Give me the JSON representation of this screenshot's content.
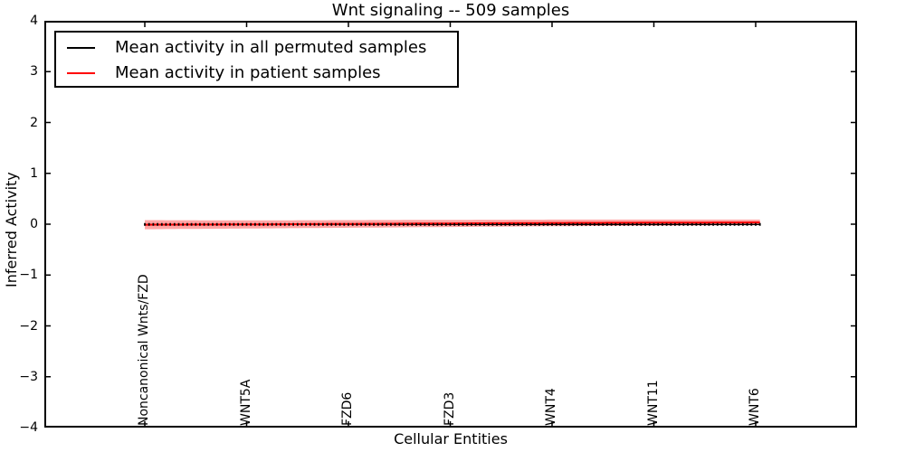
{
  "figure": {
    "title": "Wnt signaling -- 509 samples",
    "xlabel": "Cellular Entities",
    "ylabel": "Inferred Activity"
  },
  "legend": {
    "items": [
      {
        "label": "Mean activity in all permuted samples",
        "color": "#000000"
      },
      {
        "label": "Mean activity in patient samples",
        "color": "#ff0000"
      }
    ]
  },
  "chart_data": {
    "type": "line",
    "title": "Wnt signaling -- 509 samples",
    "xlabel": "Cellular Entities",
    "ylabel": "Inferred Activity",
    "ylim": [
      -4,
      4
    ],
    "yticks": [
      4,
      3,
      2,
      1,
      0,
      -1,
      -2,
      -3,
      -4
    ],
    "grid": false,
    "legend_position": "upper left",
    "categories": [
      "Noncanonical Wnts/FZD",
      "WNT5A",
      "FZD6",
      "FZD3",
      "WNT4",
      "WNT11",
      "WNT6"
    ],
    "category_indices": [
      0,
      24,
      48,
      72,
      96,
      120,
      144
    ],
    "n_points": 146,
    "series": [
      {
        "name": "Mean activity in all permuted samples",
        "color": "#000000",
        "marker": "vertical-dash",
        "values_at_categories": [
          -0.005,
          -0.005,
          -0.005,
          -0.005,
          -0.005,
          -0.005,
          -0.005
        ]
      },
      {
        "name": "Mean activity in patient samples",
        "color": "#ff0000",
        "marker": "none",
        "values_at_categories": [
          -0.01,
          -0.005,
          0.005,
          0.015,
          0.025,
          0.03,
          0.035
        ]
      }
    ],
    "error_band": {
      "around_series": "Mean activity in patient samples",
      "halfwidths_at_categories": [
        0.09,
        0.08,
        0.075,
        0.07,
        0.065,
        0.06,
        0.055
      ],
      "color": "#ff0000",
      "opacity": 0.35
    }
  }
}
